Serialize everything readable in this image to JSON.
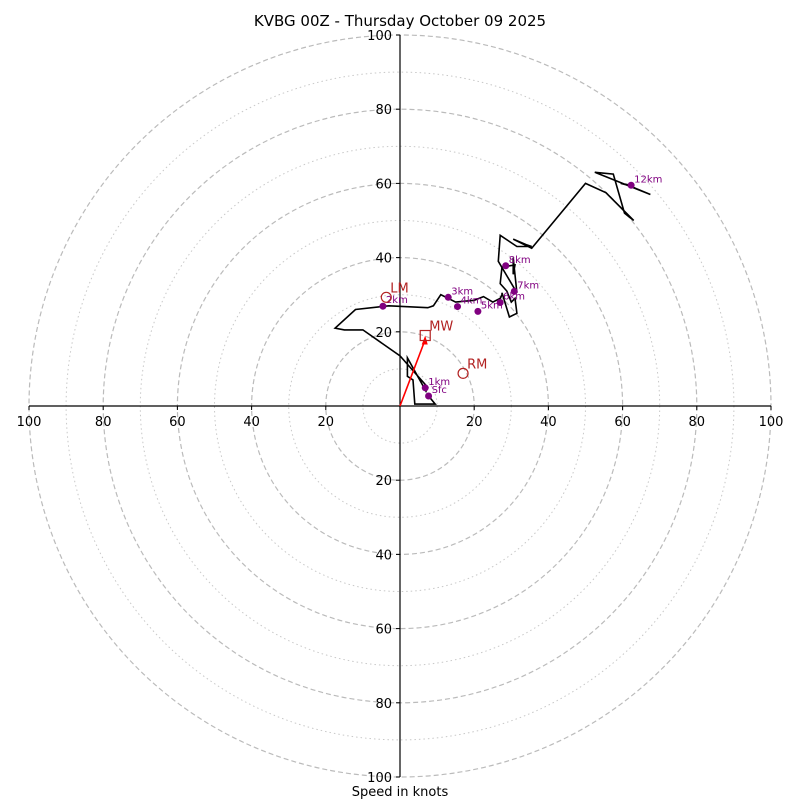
{
  "chart_data": {
    "type": "line",
    "subtype": "hodograph",
    "title": "KVBG 00Z - Thursday October 09 2025",
    "xlabel": "Speed in knots",
    "ylabel": "",
    "xlim": [
      -100,
      100
    ],
    "ylim": [
      -100,
      100
    ],
    "major_rings": [
      20,
      40,
      60,
      80,
      100
    ],
    "minor_rings": [
      10,
      30,
      50,
      70,
      90
    ],
    "x_tick_labels": [
      "100",
      "80",
      "60",
      "40",
      "20",
      "20",
      "40",
      "60",
      "80",
      "100"
    ],
    "x_tick_values": [
      -100,
      -80,
      -60,
      -40,
      -20,
      20,
      40,
      60,
      80,
      100
    ],
    "y_tick_labels": [
      "100",
      "80",
      "60",
      "40",
      "20",
      "20",
      "40",
      "60",
      "80",
      "100"
    ],
    "y_tick_values": [
      100,
      80,
      60,
      40,
      20,
      -20,
      -40,
      -60,
      -80,
      -100
    ],
    "grid": true,
    "hodograph": {
      "color": "#000000",
      "u": [
        7.7,
        9.5,
        4,
        3.5,
        2,
        2,
        7,
        7.5,
        0,
        -10,
        -15,
        -17.5,
        -12,
        -3,
        7.5,
        9,
        11,
        15,
        20,
        22.5,
        25,
        27,
        27.5,
        27.5,
        29.5,
        31.5,
        31,
        30,
        28.8,
        27,
        27.5,
        31,
        30.5,
        30.5,
        31.5,
        26.5,
        27,
        31.5,
        35.5,
        34,
        30.5,
        35.5,
        50,
        55.5,
        63,
        60.5,
        57.5,
        52.5,
        67.5,
        61.5,
        59.5,
        62.3
      ],
      "v": [
        2.7,
        0.5,
        0.5,
        7,
        8,
        13,
        4,
        5,
        13.5,
        20.5,
        20.5,
        21,
        26,
        27,
        26.5,
        27,
        30,
        28,
        28.5,
        29.5,
        28,
        29,
        30,
        30.5,
        24,
        25,
        29,
        28,
        31,
        33,
        37.5,
        38,
        35.5,
        40,
        30.5,
        39,
        46,
        43,
        43,
        43.5,
        45,
        42.5,
        60,
        57.5,
        50,
        52,
        62.5,
        63,
        57,
        59.5,
        60,
        59.5
      ]
    },
    "height_markers": [
      {
        "label": "Sfc",
        "u": 7.7,
        "v": 2.7
      },
      {
        "label": "1km",
        "u": 6.8,
        "v": 4.9
      },
      {
        "label": "2km",
        "u": -4.6,
        "v": 26.9
      },
      {
        "label": "3km",
        "u": 13.0,
        "v": 29.3
      },
      {
        "label": "4km",
        "u": 15.5,
        "v": 26.8
      },
      {
        "label": "5km",
        "u": 21.0,
        "v": 25.5
      },
      {
        "label": "6km",
        "u": 27.0,
        "v": 27.9
      },
      {
        "label": "7km",
        "u": 30.8,
        "v": 30.9
      },
      {
        "label": "8km",
        "u": 28.5,
        "v": 37.8
      },
      {
        "label": "12km",
        "u": 62.3,
        "v": 59.5
      }
    ],
    "marker_color": "#800080",
    "storm_motion": [
      {
        "label": "LM",
        "symbol": "circle",
        "u": -3.7,
        "v": 29.3
      },
      {
        "label": "MW",
        "symbol": "square",
        "u": 6.8,
        "v": 19.0
      },
      {
        "label": "RM",
        "symbol": "circle",
        "u": 17.0,
        "v": 8.8
      }
    ],
    "storm_color": "#b22222",
    "mean_wind_vector": {
      "color": "#ff0000",
      "from_u": 0,
      "from_v": 0,
      "to_u": 6.8,
      "to_v": 19.0
    }
  }
}
